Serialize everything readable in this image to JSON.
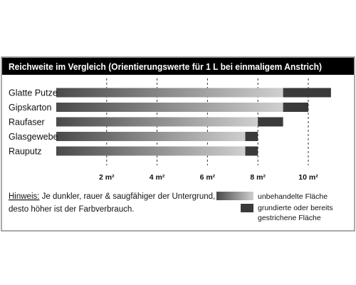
{
  "chart_data": {
    "type": "bar",
    "stacked": true,
    "title": "Reichweite im Vergleich (Orientierungswerte für 1 L bei einmaligem Anstrich)",
    "categories": [
      "Glatte Putze",
      "Gipskarton",
      "Raufaser",
      "Glasgewebe",
      "Rauputz"
    ],
    "series": [
      {
        "name": "unbehandelte Fläche",
        "values": [
          9,
          9,
          8,
          7.5,
          7.5
        ]
      },
      {
        "name": "grundierte oder bereits gestrichene Fläche",
        "values": [
          1.9,
          1.0,
          1.0,
          0.5,
          0.5
        ]
      }
    ],
    "x_ticks": [
      2,
      4,
      6,
      8,
      10
    ],
    "x_unit": "m²",
    "xlim": [
      0,
      11.2
    ],
    "grid": "dashed vertical",
    "legend_position": "bottom-right",
    "colors": {
      "untreated_start": "#4a4a4a",
      "untreated_end": "#cfcfcf",
      "treated": "#3a3a3a",
      "title_bg": "#000000",
      "title_fg": "#ffffff"
    }
  },
  "note": {
    "label": "Hinweis:",
    "line1_rest": " Je dunkler, rauer & saugfähiger der Untergrund,",
    "line2": "desto höher ist der Farbverbrauch."
  },
  "legend": {
    "untreated_label": "unbehandelte Fläche",
    "treated_label_line1": "grundierte oder bereits",
    "treated_label_line2": "gestrichene Fläche"
  }
}
